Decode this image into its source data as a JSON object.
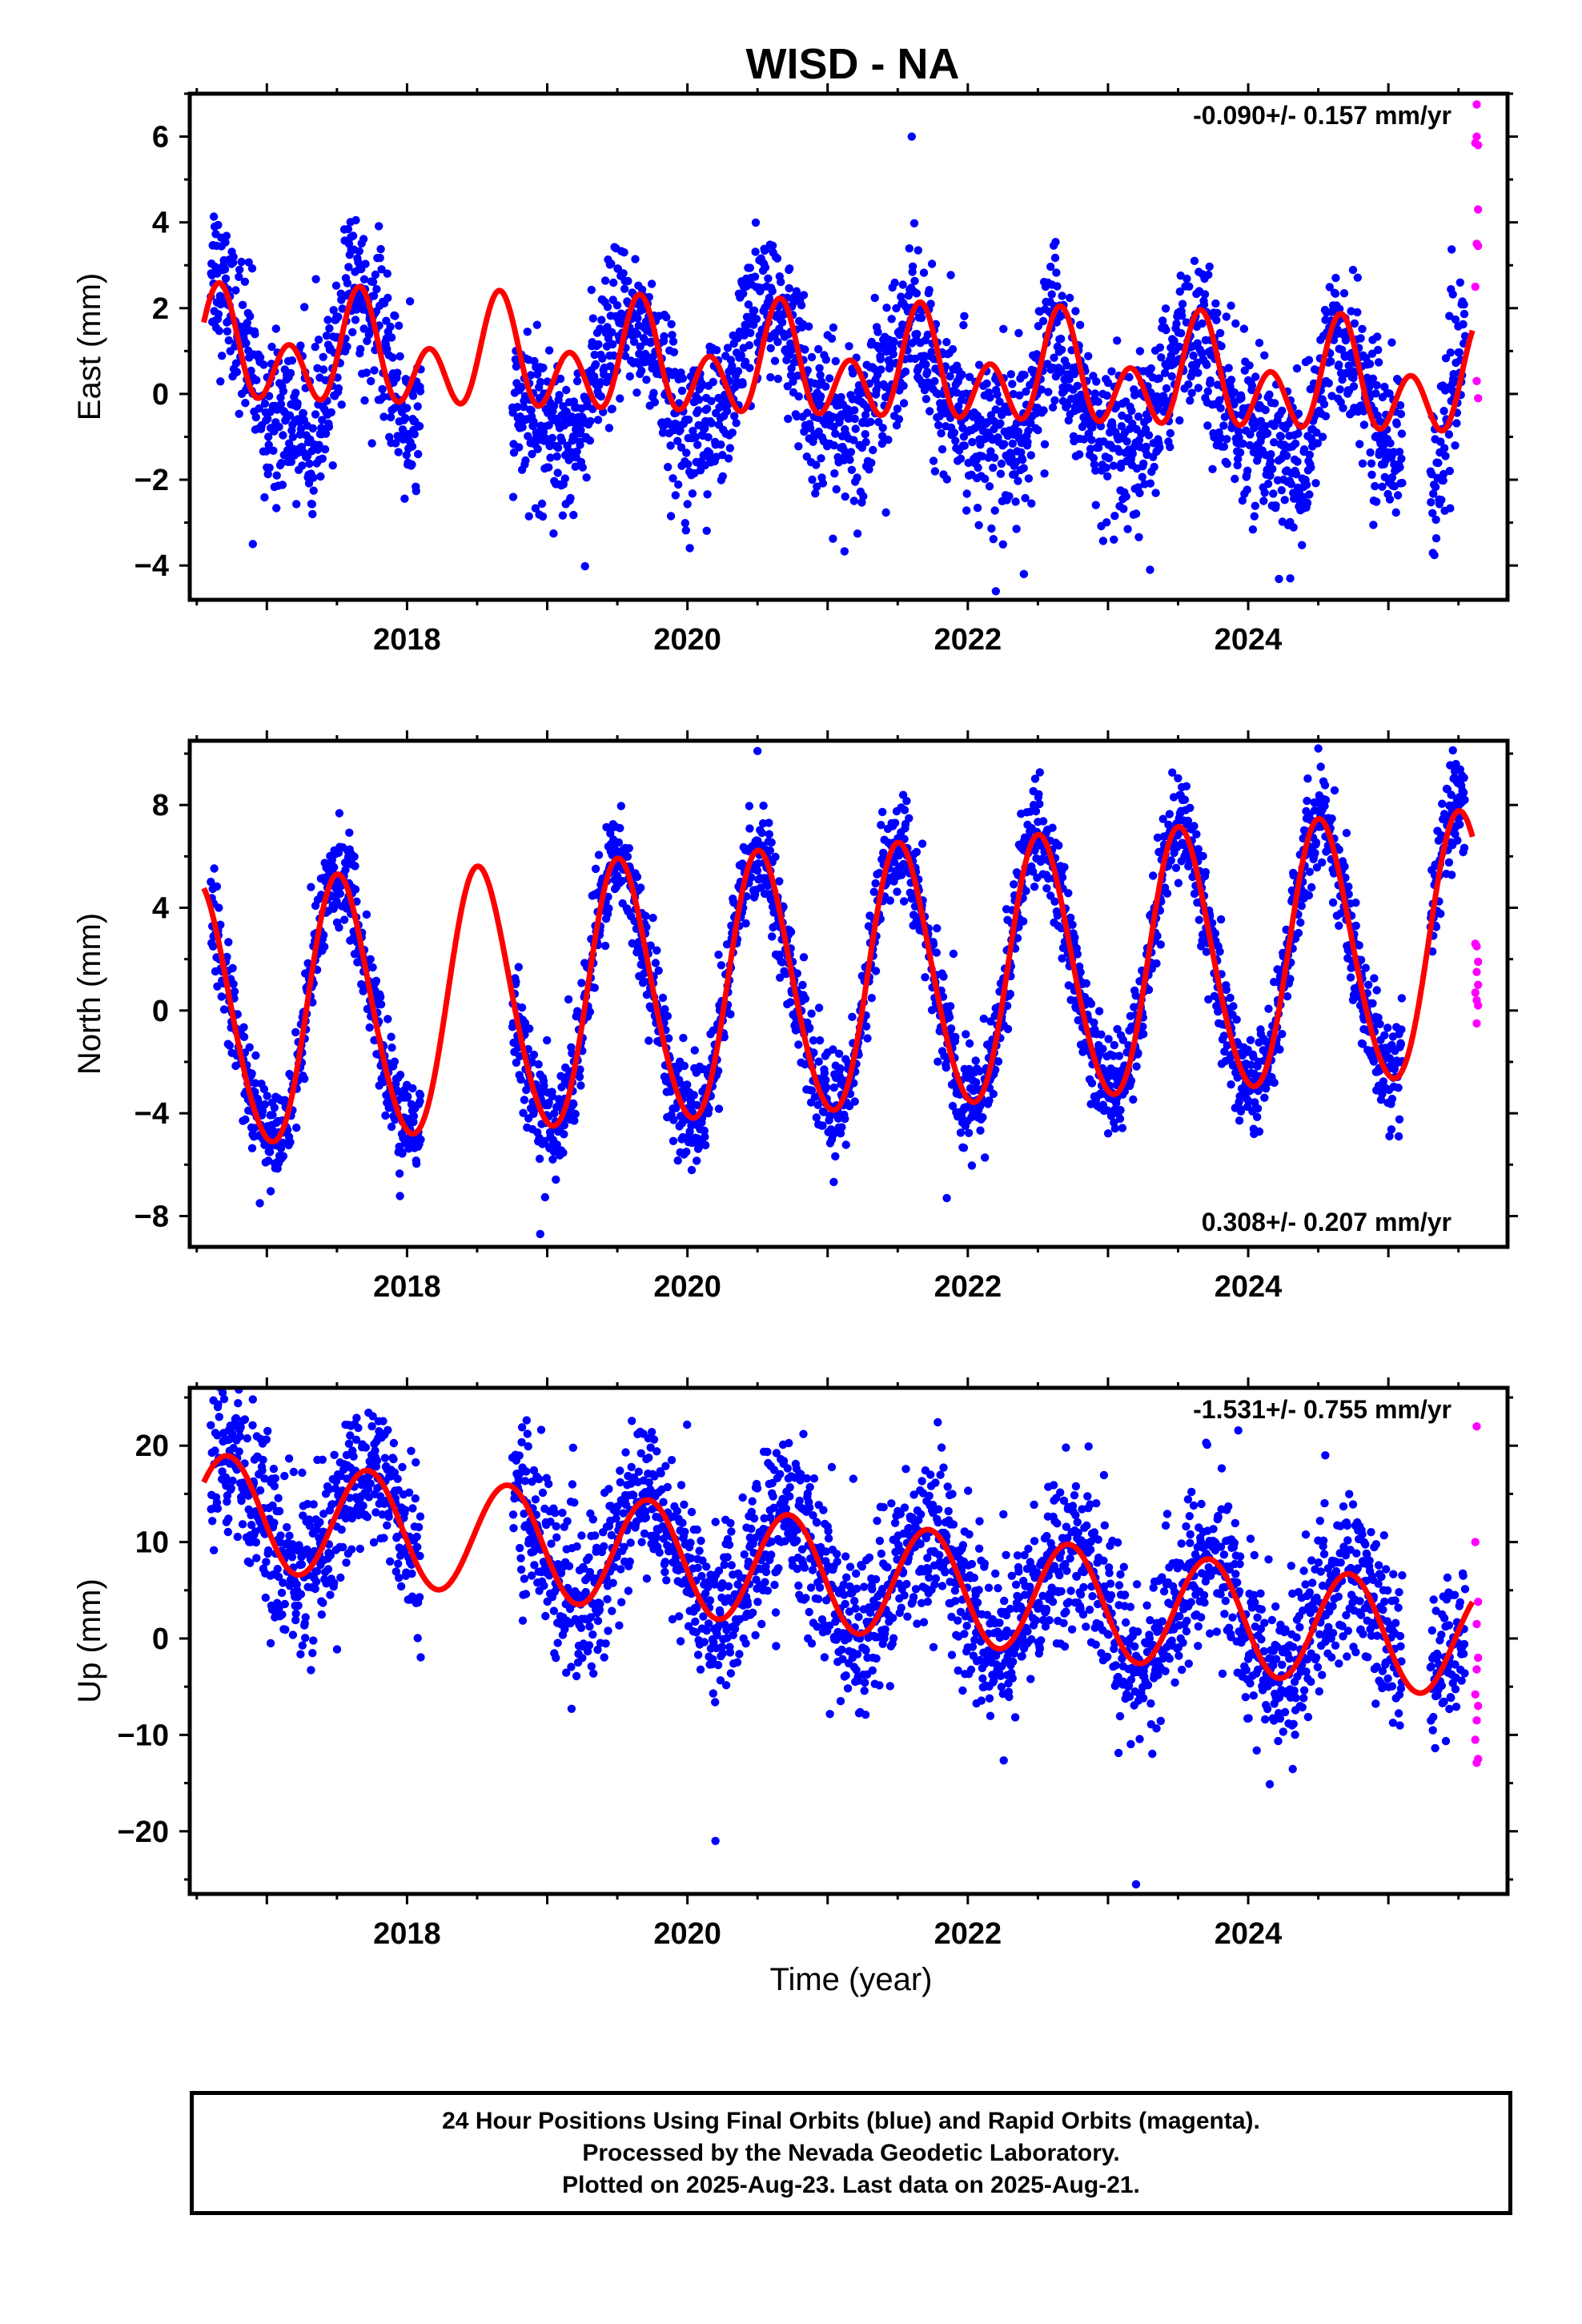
{
  "title": "WISD - NA",
  "xlabel": "Time (year)",
  "colors": {
    "final": "#0000ff",
    "rapid": "#ff00ff",
    "model": "#ff0000",
    "axes": "#000000"
  },
  "footer": {
    "line1": "24 Hour Positions Using Final Orbits (blue) and Rapid Orbits (magenta).",
    "line2": "Processed by the Nevada Geodetic Laboratory.",
    "line3": "Plotted on 2025-Aug-23. Last data on 2025-Aug-21."
  },
  "chart_data": [
    {
      "type": "scatter",
      "component": "East",
      "ylabel": "East (mm)",
      "rate_label": "-0.090+/- 0.157 mm/yr",
      "rate_position": "top-right",
      "xlim": [
        2016.45,
        2025.85
      ],
      "ylim": [
        -4.8,
        7.0
      ],
      "xticks": [
        2018,
        2020,
        2022,
        2024
      ],
      "yticks": [
        -4,
        -2,
        0,
        2,
        4,
        6
      ],
      "gaps": [
        [
          2018.1,
          2018.75
        ],
        [
          2025.1,
          2025.3
        ]
      ],
      "series": [
        {
          "role": "final-orbits",
          "x_range": [
            2016.6,
            2025.55
          ],
          "trend": [
            [
              2016.6,
              3.2
            ],
            [
              2016.8,
              1.6
            ],
            [
              2017.0,
              -0.6
            ],
            [
              2017.2,
              -0.6
            ],
            [
              2017.4,
              -0.8
            ],
            [
              2017.6,
              2.9
            ],
            [
              2017.8,
              1.5
            ],
            [
              2018.0,
              -0.8
            ],
            [
              2018.8,
              -0.4
            ],
            [
              2019.0,
              -0.6
            ],
            [
              2019.2,
              -1.0
            ],
            [
              2019.5,
              1.6
            ],
            [
              2019.7,
              1.6
            ],
            [
              2019.9,
              -0.4
            ],
            [
              2020.2,
              -0.8
            ],
            [
              2020.5,
              2.2
            ],
            [
              2020.7,
              1.8
            ],
            [
              2020.9,
              -0.4
            ],
            [
              2021.2,
              -1.0
            ],
            [
              2021.6,
              2.0
            ],
            [
              2021.8,
              0.0
            ],
            [
              2022.1,
              -0.9
            ],
            [
              2022.4,
              -1.3
            ],
            [
              2022.6,
              1.8
            ],
            [
              2022.9,
              -1.0
            ],
            [
              2023.2,
              -1.6
            ],
            [
              2023.6,
              1.8
            ],
            [
              2023.9,
              -0.6
            ],
            [
              2024.2,
              -1.2
            ],
            [
              2024.4,
              -1.9
            ],
            [
              2024.6,
              1.4
            ],
            [
              2024.8,
              0.4
            ],
            [
              2025.0,
              -1.2
            ],
            [
              2025.35,
              -2.0
            ],
            [
              2025.55,
              1.8
            ]
          ],
          "scatter_sd": 0.9,
          "outliers": [
            [
              2021.6,
              6.0
            ],
            [
              2022.2,
              -4.6
            ],
            [
              2022.4,
              -4.2
            ],
            [
              2016.9,
              -3.5
            ],
            [
              2023.3,
              -4.1
            ],
            [
              2024.3,
              -4.3
            ]
          ]
        },
        {
          "role": "rapid-orbits",
          "points": [
            [
              2025.63,
              6.75
            ],
            [
              2025.63,
              6.0
            ],
            [
              2025.64,
              5.8
            ],
            [
              2025.62,
              5.85
            ],
            [
              2025.64,
              4.3
            ],
            [
              2025.63,
              3.5
            ],
            [
              2025.64,
              3.45
            ],
            [
              2025.62,
              2.5
            ],
            [
              2025.63,
              0.3
            ],
            [
              2025.64,
              -0.1
            ]
          ]
        },
        {
          "role": "model",
          "mean": 0.55,
          "rate": -0.09,
          "annual": {
            "amplitude": 0.7,
            "peak": 0.66
          },
          "semiannual": {
            "amplitude": 0.95,
            "peak": 0.66
          },
          "x_range": [
            2016.55,
            2025.6
          ]
        }
      ]
    },
    {
      "type": "scatter",
      "component": "North",
      "ylabel": "North (mm)",
      "rate_label": "0.308+/- 0.207 mm/yr",
      "rate_position": "bottom-right",
      "xlim": [
        2016.45,
        2025.85
      ],
      "ylim": [
        -9.2,
        10.5
      ],
      "xticks": [
        2018,
        2020,
        2022,
        2024
      ],
      "yticks": [
        -8,
        -4,
        0,
        4,
        8
      ],
      "gaps": [
        [
          2018.1,
          2018.75
        ],
        [
          2025.1,
          2025.3
        ]
      ],
      "series": [
        {
          "role": "final-orbits",
          "x_range": [
            2016.6,
            2025.55
          ],
          "trend": "model",
          "scatter_sd": 1.0,
          "outliers": [
            [
              2018.95,
              -8.7
            ],
            [
              2020.5,
              10.1
            ],
            [
              2024.5,
              10.2
            ],
            [
              2016.95,
              -7.5
            ],
            [
              2021.85,
              -7.3
            ]
          ]
        },
        {
          "role": "rapid-orbits",
          "points": [
            [
              2025.62,
              2.6
            ],
            [
              2025.63,
              2.5
            ],
            [
              2025.64,
              1.9
            ],
            [
              2025.63,
              1.5
            ],
            [
              2025.64,
              1.0
            ],
            [
              2025.62,
              0.7
            ],
            [
              2025.63,
              0.4
            ],
            [
              2025.64,
              0.2
            ],
            [
              2025.63,
              -0.5
            ]
          ]
        },
        {
          "role": "model",
          "mean": 1.0,
          "rate": 0.308,
          "annual": {
            "amplitude": 5.1,
            "peak": 0.52
          },
          "semiannual": {
            "amplitude": 0.4,
            "peak": 0.45
          },
          "x_range": [
            2016.55,
            2025.6
          ]
        }
      ]
    },
    {
      "type": "scatter",
      "component": "Up",
      "ylabel": "Up (mm)",
      "rate_label": "-1.531+/- 0.755 mm/yr",
      "rate_position": "top-right",
      "xlim": [
        2016.45,
        2025.85
      ],
      "ylim": [
        -26.5,
        26.0
      ],
      "xticks": [
        2018,
        2020,
        2022,
        2024
      ],
      "yticks": [
        -20,
        -10,
        0,
        10,
        20
      ],
      "gaps": [
        [
          2018.1,
          2018.75
        ],
        [
          2025.1,
          2025.3
        ]
      ],
      "series": [
        {
          "role": "final-orbits",
          "x_range": [
            2016.6,
            2025.55
          ],
          "trend": "model",
          "scatter_sd": 4.2,
          "outliers": [
            [
              2016.9,
              24.8
            ],
            [
              2016.65,
              24.0
            ],
            [
              2023.2,
              -25.5
            ],
            [
              2020.2,
              -21.0
            ],
            [
              2023.7,
              20.3
            ],
            [
              2022.7,
              19.8
            ],
            [
              2024.55,
              19.0
            ],
            [
              2017.8,
              21.5
            ]
          ]
        },
        {
          "role": "rapid-orbits",
          "points": [
            [
              2025.63,
              22.0
            ],
            [
              2025.62,
              10.0
            ],
            [
              2025.64,
              3.8
            ],
            [
              2025.63,
              1.5
            ],
            [
              2025.64,
              -2.0
            ],
            [
              2025.63,
              -3.2
            ],
            [
              2025.62,
              -5.8
            ],
            [
              2025.64,
              -7.0
            ],
            [
              2025.63,
              -8.5
            ],
            [
              2025.62,
              -10.5
            ],
            [
              2025.64,
              -12.5
            ],
            [
              2025.63,
              -12.9
            ]
          ]
        },
        {
          "role": "model",
          "mean": 6.6,
          "rate": -1.531,
          "annual": {
            "amplitude": 5.8,
            "peak": 0.72
          },
          "semiannual": {
            "amplitude": 0.0,
            "peak": 0.0
          },
          "x_range": [
            2016.55,
            2025.6
          ]
        }
      ]
    }
  ]
}
